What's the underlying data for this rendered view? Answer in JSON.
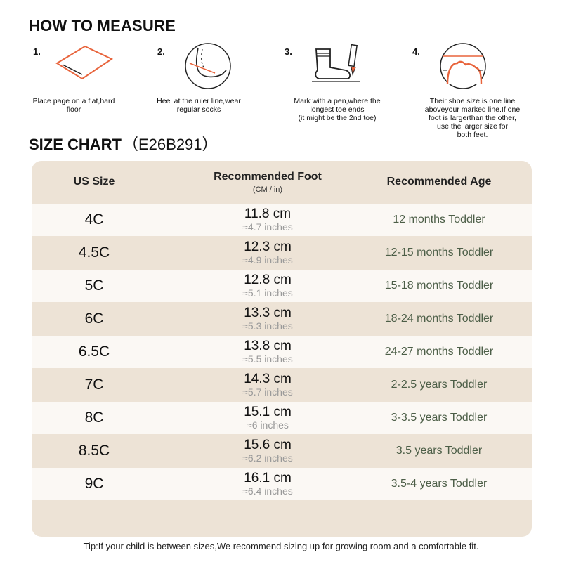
{
  "measure": {
    "title": "HOW TO MEASURE",
    "steps": [
      {
        "num": "1.",
        "caption": "Place page on a flat,hard\nfloor",
        "icon": "paper-on-floor-icon"
      },
      {
        "num": "2.",
        "caption": "Heel at the ruler line,wear\nregular socks",
        "icon": "heel-on-ruler-icon"
      },
      {
        "num": "3.",
        "caption": "Mark with a pen,where the\nlongest toe ends\n(it might be the 2nd toe)",
        "icon": "sock-and-pen-icon"
      },
      {
        "num": "4.",
        "caption": "Their shoe size is one line\naboveyour marked line.If one\nfoot is largerthan the other,\nuse the larger size for\nboth feet.",
        "icon": "toe-line-icon"
      }
    ]
  },
  "chart": {
    "title": "SIZE CHART",
    "code": "（E26B291）",
    "headers": {
      "size": "US Size",
      "foot": "Recommended Foot",
      "foot_unit": "(CM / in)",
      "age": "Recommended Age"
    },
    "rows": [
      {
        "size": "4C",
        "cm": "11.8 cm",
        "inch": "≈4.7 inches",
        "age": "12 months Toddler"
      },
      {
        "size": "4.5C",
        "cm": "12.3 cm",
        "inch": "≈4.9 inches",
        "age": "12-15 months Toddler"
      },
      {
        "size": "5C",
        "cm": "12.8 cm",
        "inch": "≈5.1 inches",
        "age": "15-18 months Toddler"
      },
      {
        "size": "6C",
        "cm": "13.3 cm",
        "inch": "≈5.3 inches",
        "age": "18-24 months Toddler"
      },
      {
        "size": "6.5C",
        "cm": "13.8 cm",
        "inch": "≈5.5 inches",
        "age": "24-27 months Toddler"
      },
      {
        "size": "7C",
        "cm": "14.3 cm",
        "inch": "≈5.7 inches",
        "age": "2-2.5 years Toddler"
      },
      {
        "size": "8C",
        "cm": "15.1 cm",
        "inch": "≈6 inches",
        "age": "3-3.5 years Toddler"
      },
      {
        "size": "8.5C",
        "cm": "15.6 cm",
        "inch": "≈6.2 inches",
        "age": "3.5 years Toddler"
      },
      {
        "size": "9C",
        "cm": "16.1 cm",
        "inch": "≈6.4 inches",
        "age": "3.5-4 years Toddler"
      }
    ]
  },
  "tip": "Tip:If your child is between sizes,We recommend sizing up for growing room and a comfortable fit.",
  "colors": {
    "accent": "#e8643c",
    "table_bg": "#ede3d6",
    "row_light": "#fbf8f4",
    "age_text": "#4c5e47"
  }
}
